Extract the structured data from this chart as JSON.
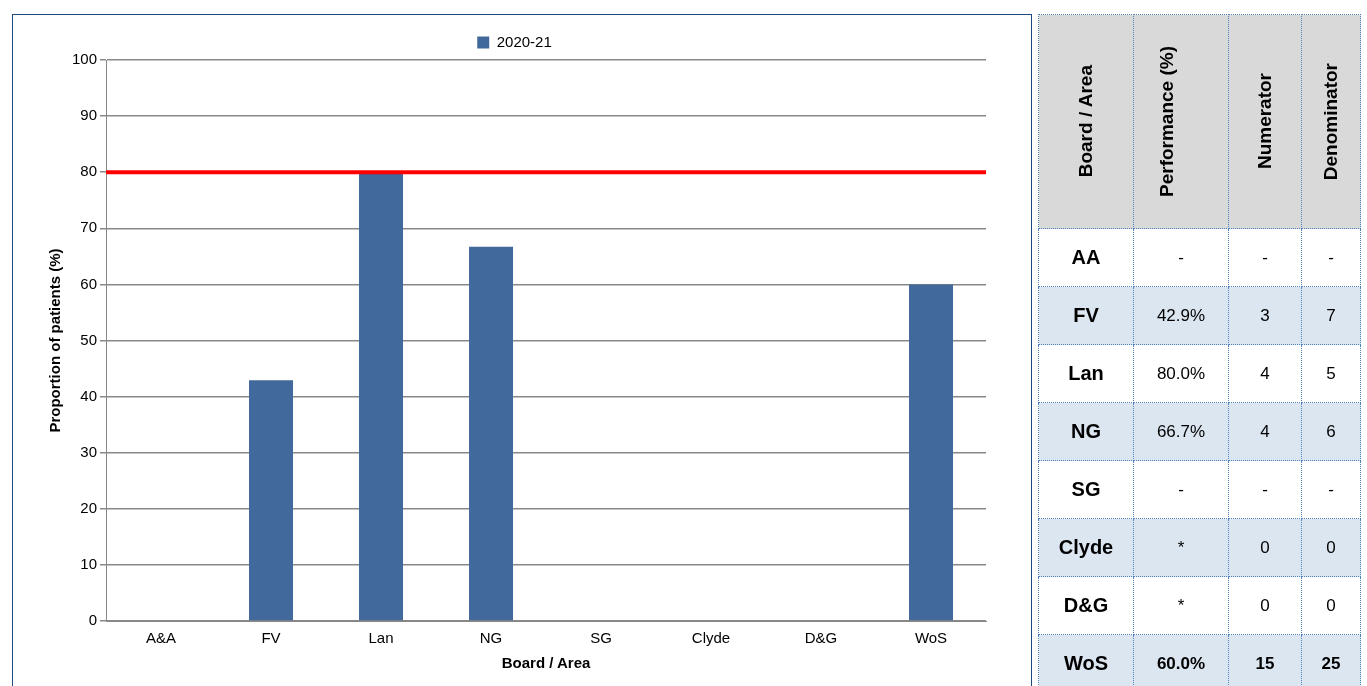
{
  "chart_data": [
    {
      "type": "bar",
      "xlabel": "Board / Area",
      "ylabel": "Proportion of patients (%)",
      "categories": [
        "A&A",
        "FV",
        "Lan",
        "NG",
        "SG",
        "Clyde",
        "D&G",
        "WoS"
      ],
      "series": [
        {
          "name": "2020-21",
          "color": "#41699b",
          "values": [
            null,
            42.9,
            80.0,
            66.7,
            null,
            null,
            null,
            60.0
          ]
        }
      ],
      "ylim": [
        0,
        100
      ],
      "yticks": [
        0,
        10,
        20,
        30,
        40,
        50,
        60,
        70,
        80,
        90,
        100
      ],
      "grid": "y",
      "legend": "top",
      "ref_lines": [
        {
          "axis": "y",
          "value": 80,
          "color": "#ff0000"
        }
      ]
    },
    {
      "type": "heatmap",
      "ylabel": "Board / Area",
      "categories": [
        "Performance (%)",
        "Numerator",
        "Denominator"
      ],
      "y_categories": [
        "AA",
        "FV",
        "Lan",
        "NG",
        "SG",
        "Clyde",
        "D&G",
        "WoS"
      ],
      "cells": [
        [
          null,
          null,
          null
        ],
        [
          null,
          null,
          null
        ],
        [
          null,
          null,
          null
        ],
        [
          null,
          null,
          null
        ],
        [
          null,
          null,
          null
        ],
        [
          null,
          null,
          null
        ],
        [
          null,
          null,
          null
        ],
        [
          null,
          null,
          null
        ]
      ],
      "cell_labels": [
        [
          "-",
          "-",
          "-"
        ],
        [
          "42.9%",
          "3",
          "7"
        ],
        [
          "80.0%",
          "4",
          "5"
        ],
        [
          "66.7%",
          "4",
          "6"
        ],
        [
          "-",
          "-",
          "-"
        ],
        [
          "*",
          "0",
          "0"
        ],
        [
          "*",
          "0",
          "0"
        ],
        [
          "60.0%",
          "15",
          "25"
        ]
      ]
    }
  ]
}
